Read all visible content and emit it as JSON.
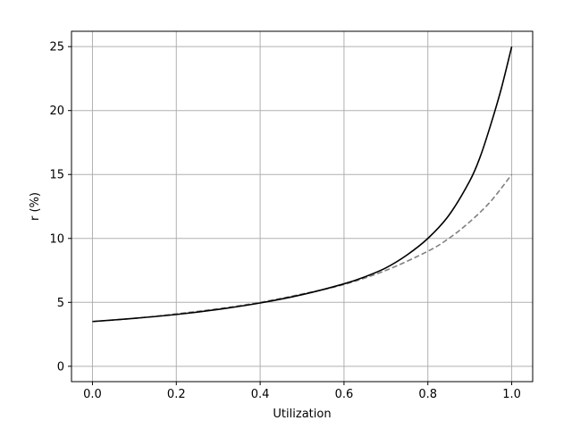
{
  "chart_data": {
    "type": "line",
    "xlabel": "Utilization",
    "ylabel": "r (%)",
    "xlim": [
      -0.05,
      1.05
    ],
    "ylim": [
      -1.2,
      26.2
    ],
    "xticks": [
      0.0,
      0.2,
      0.4,
      0.6,
      0.8,
      1.0
    ],
    "xtick_labels": [
      "0.0",
      "0.2",
      "0.4",
      "0.6",
      "0.8",
      "1.0"
    ],
    "yticks": [
      0,
      5,
      10,
      15,
      20,
      25
    ],
    "ytick_labels": [
      "0",
      "5",
      "10",
      "15",
      "20",
      "25"
    ],
    "grid": true,
    "series": [
      {
        "color": "#000000",
        "style": "solid",
        "x": [
          0.0,
          0.1,
          0.2,
          0.3,
          0.4,
          0.5,
          0.6,
          0.65,
          0.7,
          0.75,
          0.8,
          0.85,
          0.9,
          0.925,
          0.95,
          0.975,
          1.0
        ],
        "y": [
          3.5,
          3.75,
          4.05,
          4.45,
          4.95,
          5.6,
          6.45,
          7.0,
          7.7,
          8.7,
          10.0,
          11.8,
          14.5,
          16.4,
          18.9,
          21.7,
          25.0
        ]
      },
      {
        "color": "#808080",
        "style": "dashed",
        "x": [
          0.0,
          0.1,
          0.2,
          0.3,
          0.4,
          0.5,
          0.6,
          0.7,
          0.8,
          0.85,
          0.9,
          0.95,
          1.0
        ],
        "y": [
          3.5,
          3.75,
          4.1,
          4.5,
          5.0,
          5.65,
          6.4,
          7.5,
          9.0,
          10.0,
          11.3,
          12.9,
          15.0
        ]
      }
    ]
  }
}
